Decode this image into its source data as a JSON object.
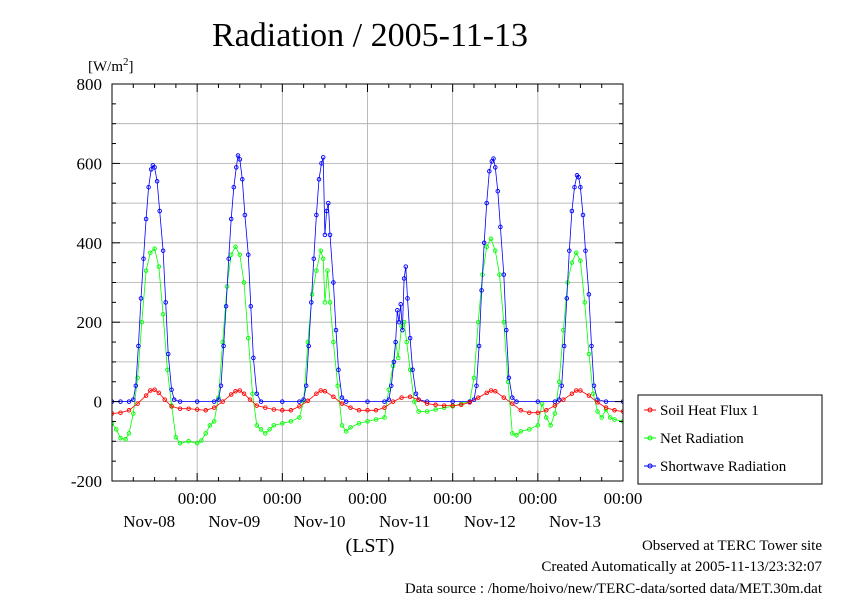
{
  "chart_data": {
    "type": "line",
    "title": "Radiation / 2005-11-13",
    "ylabel_unit": "[W/m2]",
    "ylim": [
      -200,
      800
    ],
    "yticks": [
      -200,
      0,
      200,
      400,
      600,
      800
    ],
    "grid": true,
    "x_unit": "days since 2005-11-07 00:00 LST",
    "xlim": [
      0,
      6
    ],
    "xticks": [
      {
        "x": 1,
        "time": "00:00",
        "date": "Nov-08"
      },
      {
        "x": 2,
        "time": "00:00",
        "date": "Nov-09"
      },
      {
        "x": 3,
        "time": "00:00",
        "date": "Nov-10"
      },
      {
        "x": 4,
        "time": "00:00",
        "date": "Nov-11"
      },
      {
        "x": 5,
        "time": "00:00",
        "date": "Nov-12"
      },
      {
        "x": 6,
        "time": "00:00",
        "date": "Nov-13"
      }
    ],
    "xlabel": "(LST)",
    "legend_position": "right",
    "series": [
      {
        "name": "Soil Heat Flux 1",
        "color": "#ff0000",
        "points": [
          [
            0.0,
            -30
          ],
          [
            0.1,
            -28
          ],
          [
            0.2,
            -22
          ],
          [
            0.3,
            -5
          ],
          [
            0.4,
            15
          ],
          [
            0.45,
            28
          ],
          [
            0.5,
            30
          ],
          [
            0.55,
            22
          ],
          [
            0.62,
            5
          ],
          [
            0.7,
            -12
          ],
          [
            0.8,
            -18
          ],
          [
            0.9,
            -18
          ],
          [
            1.0,
            -20
          ],
          [
            1.1,
            -22
          ],
          [
            1.2,
            -15
          ],
          [
            1.3,
            0
          ],
          [
            1.4,
            18
          ],
          [
            1.45,
            26
          ],
          [
            1.5,
            28
          ],
          [
            1.55,
            20
          ],
          [
            1.62,
            5
          ],
          [
            1.7,
            -10
          ],
          [
            1.8,
            -15
          ],
          [
            1.9,
            -20
          ],
          [
            2.0,
            -22
          ],
          [
            2.1,
            -22
          ],
          [
            2.2,
            -12
          ],
          [
            2.3,
            2
          ],
          [
            2.4,
            20
          ],
          [
            2.45,
            28
          ],
          [
            2.5,
            26
          ],
          [
            2.6,
            12
          ],
          [
            2.7,
            -5
          ],
          [
            2.8,
            -15
          ],
          [
            2.9,
            -22
          ],
          [
            3.0,
            -22
          ],
          [
            3.1,
            -22
          ],
          [
            3.2,
            -15
          ],
          [
            3.3,
            0
          ],
          [
            3.4,
            10
          ],
          [
            3.5,
            12
          ],
          [
            3.6,
            5
          ],
          [
            3.7,
            -5
          ],
          [
            3.8,
            -8
          ],
          [
            3.9,
            -10
          ],
          [
            4.0,
            -10
          ],
          [
            4.1,
            -8
          ],
          [
            4.2,
            -2
          ],
          [
            4.3,
            10
          ],
          [
            4.4,
            22
          ],
          [
            4.45,
            28
          ],
          [
            4.5,
            26
          ],
          [
            4.6,
            10
          ],
          [
            4.7,
            -5
          ],
          [
            4.8,
            -22
          ],
          [
            4.9,
            -28
          ],
          [
            5.0,
            -28
          ],
          [
            5.1,
            -22
          ],
          [
            5.2,
            -10
          ],
          [
            5.3,
            5
          ],
          [
            5.4,
            20
          ],
          [
            5.45,
            28
          ],
          [
            5.5,
            28
          ],
          [
            5.6,
            15
          ],
          [
            5.7,
            -2
          ],
          [
            5.8,
            -15
          ],
          [
            5.9,
            -22
          ],
          [
            6.0,
            -25
          ]
        ]
      },
      {
        "name": "Net Radiation",
        "color": "#00ff00",
        "points": [
          [
            0.0,
            -55
          ],
          [
            0.05,
            -70
          ],
          [
            0.1,
            -92
          ],
          [
            0.16,
            -95
          ],
          [
            0.2,
            -80
          ],
          [
            0.25,
            -30
          ],
          [
            0.3,
            60
          ],
          [
            0.35,
            200
          ],
          [
            0.4,
            330
          ],
          [
            0.45,
            375
          ],
          [
            0.5,
            385
          ],
          [
            0.55,
            340
          ],
          [
            0.6,
            220
          ],
          [
            0.65,
            80
          ],
          [
            0.7,
            -10
          ],
          [
            0.75,
            -90
          ],
          [
            0.8,
            -105
          ],
          [
            0.9,
            -100
          ],
          [
            1.0,
            -105
          ],
          [
            1.05,
            -98
          ],
          [
            1.1,
            -80
          ],
          [
            1.15,
            -60
          ],
          [
            1.2,
            -50
          ],
          [
            1.25,
            10
          ],
          [
            1.3,
            150
          ],
          [
            1.35,
            290
          ],
          [
            1.4,
            370
          ],
          [
            1.45,
            390
          ],
          [
            1.5,
            370
          ],
          [
            1.55,
            300
          ],
          [
            1.6,
            160
          ],
          [
            1.65,
            20
          ],
          [
            1.7,
            -60
          ],
          [
            1.75,
            -70
          ],
          [
            1.8,
            -80
          ],
          [
            1.85,
            -70
          ],
          [
            1.9,
            -60
          ],
          [
            2.0,
            -55
          ],
          [
            2.1,
            -50
          ],
          [
            2.2,
            -40
          ],
          [
            2.25,
            0
          ],
          [
            2.3,
            150
          ],
          [
            2.35,
            270
          ],
          [
            2.4,
            330
          ],
          [
            2.45,
            380
          ],
          [
            2.48,
            360
          ],
          [
            2.5,
            250
          ],
          [
            2.53,
            330
          ],
          [
            2.56,
            250
          ],
          [
            2.6,
            150
          ],
          [
            2.65,
            40
          ],
          [
            2.7,
            -60
          ],
          [
            2.75,
            -75
          ],
          [
            2.8,
            -65
          ],
          [
            2.9,
            -55
          ],
          [
            3.0,
            -50
          ],
          [
            3.1,
            -45
          ],
          [
            3.2,
            -40
          ],
          [
            3.25,
            30
          ],
          [
            3.3,
            90
          ],
          [
            3.33,
            150
          ],
          [
            3.36,
            110
          ],
          [
            3.4,
            190
          ],
          [
            3.43,
            200
          ],
          [
            3.46,
            150
          ],
          [
            3.5,
            80
          ],
          [
            3.55,
            0
          ],
          [
            3.6,
            -25
          ],
          [
            3.7,
            -25
          ],
          [
            3.8,
            -20
          ],
          [
            3.9,
            -15
          ],
          [
            4.0,
            -12
          ],
          [
            4.1,
            -5
          ],
          [
            4.2,
            0
          ],
          [
            4.25,
            60
          ],
          [
            4.3,
            200
          ],
          [
            4.35,
            320
          ],
          [
            4.4,
            390
          ],
          [
            4.45,
            410
          ],
          [
            4.5,
            380
          ],
          [
            4.55,
            320
          ],
          [
            4.6,
            200
          ],
          [
            4.65,
            50
          ],
          [
            4.7,
            -80
          ],
          [
            4.75,
            -85
          ],
          [
            4.8,
            -75
          ],
          [
            4.9,
            -70
          ],
          [
            5.0,
            -60
          ],
          [
            5.05,
            -5
          ],
          [
            5.1,
            -40
          ],
          [
            5.15,
            -60
          ],
          [
            5.2,
            -30
          ],
          [
            5.25,
            50
          ],
          [
            5.3,
            180
          ],
          [
            5.35,
            300
          ],
          [
            5.4,
            350
          ],
          [
            5.45,
            375
          ],
          [
            5.5,
            355
          ],
          [
            5.55,
            250
          ],
          [
            5.6,
            120
          ],
          [
            5.65,
            20
          ],
          [
            5.7,
            -25
          ],
          [
            5.75,
            -40
          ],
          [
            5.8,
            -20
          ],
          [
            5.85,
            -40
          ],
          [
            5.9,
            -45
          ],
          [
            6.0,
            -50
          ]
        ]
      },
      {
        "name": "Shortwave Radiation",
        "color": "#0000ff",
        "points": [
          [
            0.0,
            0
          ],
          [
            0.1,
            0
          ],
          [
            0.2,
            0
          ],
          [
            0.25,
            5
          ],
          [
            0.28,
            40
          ],
          [
            0.31,
            140
          ],
          [
            0.34,
            260
          ],
          [
            0.37,
            360
          ],
          [
            0.4,
            460
          ],
          [
            0.43,
            540
          ],
          [
            0.46,
            585
          ],
          [
            0.48,
            595
          ],
          [
            0.5,
            590
          ],
          [
            0.53,
            555
          ],
          [
            0.56,
            480
          ],
          [
            0.6,
            380
          ],
          [
            0.63,
            250
          ],
          [
            0.66,
            120
          ],
          [
            0.7,
            30
          ],
          [
            0.73,
            5
          ],
          [
            0.8,
            0
          ],
          [
            1.0,
            0
          ],
          [
            1.2,
            0
          ],
          [
            1.25,
            5
          ],
          [
            1.28,
            40
          ],
          [
            1.31,
            140
          ],
          [
            1.34,
            240
          ],
          [
            1.37,
            360
          ],
          [
            1.4,
            460
          ],
          [
            1.43,
            540
          ],
          [
            1.46,
            590
          ],
          [
            1.48,
            620
          ],
          [
            1.5,
            610
          ],
          [
            1.53,
            560
          ],
          [
            1.56,
            470
          ],
          [
            1.6,
            370
          ],
          [
            1.63,
            240
          ],
          [
            1.66,
            110
          ],
          [
            1.7,
            20
          ],
          [
            1.75,
            0
          ],
          [
            2.0,
            0
          ],
          [
            2.2,
            0
          ],
          [
            2.25,
            5
          ],
          [
            2.28,
            40
          ],
          [
            2.31,
            140
          ],
          [
            2.34,
            250
          ],
          [
            2.37,
            360
          ],
          [
            2.4,
            470
          ],
          [
            2.43,
            560
          ],
          [
            2.46,
            600
          ],
          [
            2.48,
            615
          ],
          [
            2.5,
            420
          ],
          [
            2.52,
            480
          ],
          [
            2.54,
            500
          ],
          [
            2.56,
            420
          ],
          [
            2.6,
            300
          ],
          [
            2.63,
            180
          ],
          [
            2.66,
            80
          ],
          [
            2.7,
            10
          ],
          [
            2.75,
            0
          ],
          [
            3.0,
            0
          ],
          [
            3.2,
            0
          ],
          [
            3.25,
            5
          ],
          [
            3.28,
            40
          ],
          [
            3.31,
            100
          ],
          [
            3.33,
            150
          ],
          [
            3.35,
            230
          ],
          [
            3.37,
            200
          ],
          [
            3.39,
            245
          ],
          [
            3.41,
            180
          ],
          [
            3.43,
            310
          ],
          [
            3.45,
            340
          ],
          [
            3.47,
            260
          ],
          [
            3.5,
            160
          ],
          [
            3.53,
            80
          ],
          [
            3.57,
            20
          ],
          [
            3.6,
            5
          ],
          [
            3.7,
            0
          ],
          [
            4.0,
            0
          ],
          [
            4.2,
            0
          ],
          [
            4.25,
            5
          ],
          [
            4.28,
            40
          ],
          [
            4.31,
            140
          ],
          [
            4.34,
            280
          ],
          [
            4.37,
            400
          ],
          [
            4.4,
            500
          ],
          [
            4.43,
            580
          ],
          [
            4.46,
            605
          ],
          [
            4.48,
            612
          ],
          [
            4.5,
            590
          ],
          [
            4.53,
            530
          ],
          [
            4.56,
            440
          ],
          [
            4.6,
            320
          ],
          [
            4.63,
            180
          ],
          [
            4.66,
            60
          ],
          [
            4.7,
            10
          ],
          [
            4.75,
            0
          ],
          [
            5.0,
            0
          ],
          [
            5.2,
            0
          ],
          [
            5.25,
            5
          ],
          [
            5.28,
            40
          ],
          [
            5.31,
            140
          ],
          [
            5.34,
            260
          ],
          [
            5.37,
            380
          ],
          [
            5.4,
            480
          ],
          [
            5.43,
            540
          ],
          [
            5.46,
            570
          ],
          [
            5.48,
            565
          ],
          [
            5.5,
            540
          ],
          [
            5.53,
            470
          ],
          [
            5.56,
            380
          ],
          [
            5.6,
            270
          ],
          [
            5.63,
            140
          ],
          [
            5.66,
            40
          ],
          [
            5.7,
            5
          ],
          [
            5.8,
            0
          ],
          [
            6.0,
            0
          ]
        ]
      }
    ]
  },
  "footer": {
    "site": "Observed at TERC Tower site",
    "created": "Created Automatically at 2005-11-13/23:32:07",
    "source": "Data source : /home/hoivo/new/TERC-data/sorted  data/MET.30m.dat"
  }
}
